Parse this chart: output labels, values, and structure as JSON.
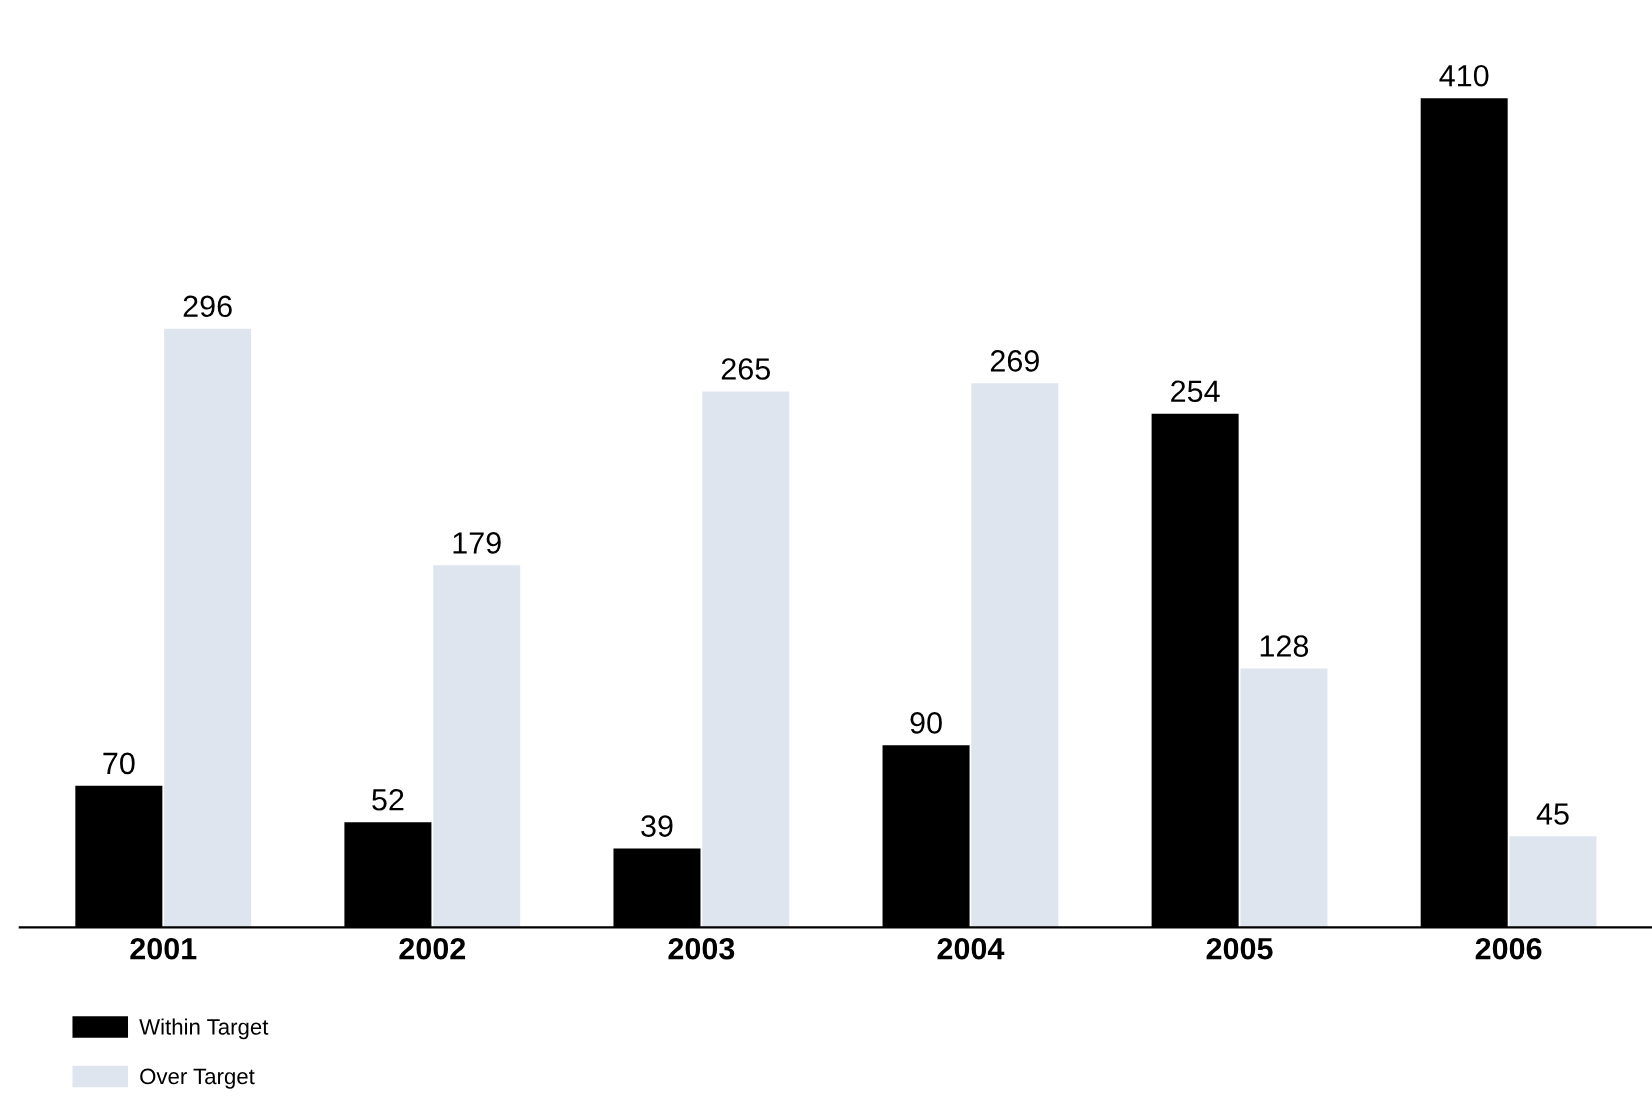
{
  "chart_data": {
    "type": "bar",
    "categories": [
      "2001",
      "2002",
      "2003",
      "2004",
      "2005",
      "2006"
    ],
    "series": [
      {
        "name": "Within Target",
        "color": "#000000",
        "values": [
          70,
          52,
          39,
          90,
          254,
          410
        ]
      },
      {
        "name": "Over Target",
        "color": "#dfe5ee",
        "values": [
          296,
          179,
          265,
          269,
          128,
          45
        ]
      }
    ],
    "data_labels": true,
    "legend": "bottom left",
    "grid": false
  }
}
